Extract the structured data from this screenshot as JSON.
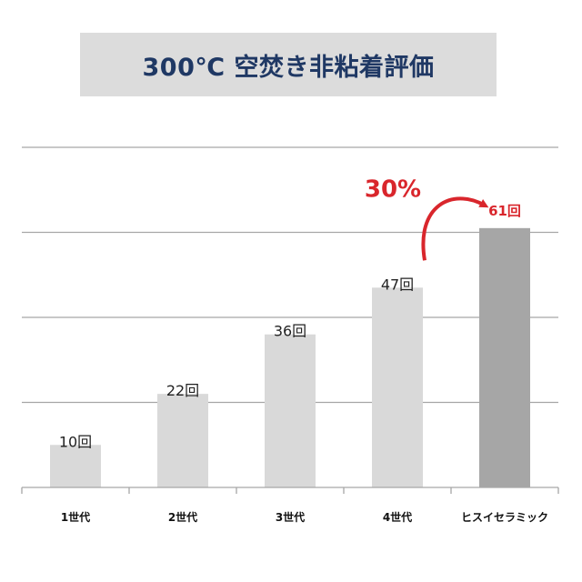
{
  "title": "300℃ 空焚き非粘着評価",
  "chart_data": {
    "type": "bar",
    "categories": [
      "1世代",
      "2世代",
      "3世代",
      "4世代",
      "ヒスイセラミック"
    ],
    "values": [
      10,
      22,
      36,
      47,
      61
    ],
    "value_labels": [
      "10回",
      "22回",
      "36回",
      "47回",
      "61回"
    ],
    "ylim": [
      0,
      80
    ],
    "grid": true,
    "colors": {
      "bar": "#d9d9d9",
      "highlight_bar": "#a6a6a6",
      "highlight_label": "#d9262c",
      "grid": "#a6a6a6"
    },
    "highlight_index": 4,
    "annotation": {
      "text": "30%",
      "from_index": 3,
      "to_index": 4,
      "color": "#d9262c"
    }
  }
}
